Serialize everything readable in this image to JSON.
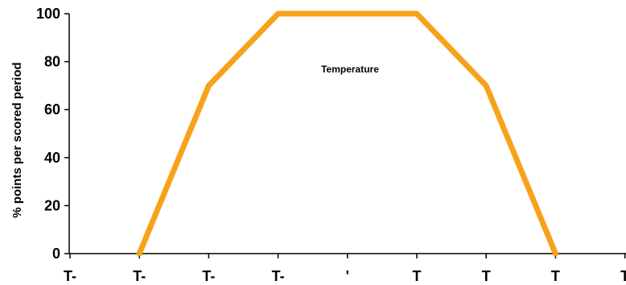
{
  "chart_data": {
    "type": "line",
    "ylabel": "% points per scored period",
    "xlabel": "",
    "ylim": [
      0,
      100
    ],
    "y_ticks": [
      0,
      20,
      40,
      60,
      80,
      100
    ],
    "categories": [
      "T-",
      "T-",
      "T-",
      "T-",
      "'",
      "T",
      "T",
      "T",
      "T"
    ],
    "series": [
      {
        "values": [
          null,
          0,
          70,
          100,
          100,
          100,
          70,
          0,
          null
        ]
      }
    ],
    "annotations": [
      {
        "text": "Temperature"
      }
    ],
    "grid": false,
    "line_color": "#f7a21b"
  }
}
